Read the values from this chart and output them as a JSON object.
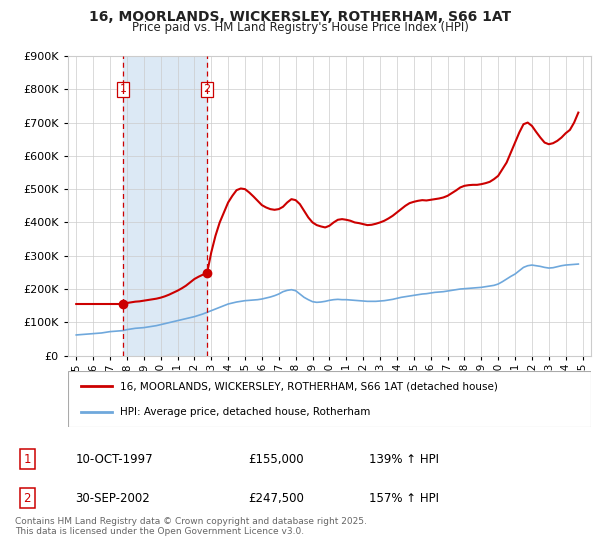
{
  "title": "16, MOORLANDS, WICKERSLEY, ROTHERHAM, S66 1AT",
  "subtitle": "Price paid vs. HM Land Registry's House Price Index (HPI)",
  "legend_line1": "16, MOORLANDS, WICKERSLEY, ROTHERHAM, S66 1AT (detached house)",
  "legend_line2": "HPI: Average price, detached house, Rotherham",
  "footnote1": "Contains HM Land Registry data © Crown copyright and database right 2025.",
  "footnote2": "This data is licensed under the Open Government Licence v3.0.",
  "transaction1_label": "1",
  "transaction1_date": "10-OCT-1997",
  "transaction1_price": "£155,000",
  "transaction1_hpi": "139% ↑ HPI",
  "transaction2_label": "2",
  "transaction2_date": "30-SEP-2002",
  "transaction2_price": "£247,500",
  "transaction2_hpi": "157% ↑ HPI",
  "sale1_year": 1997.78,
  "sale1_price": 155000,
  "sale2_year": 2002.75,
  "sale2_price": 247500,
  "hpi_color": "#6fa8dc",
  "price_color": "#cc0000",
  "highlight_color": "#dce9f5",
  "vline_color": "#cc0000",
  "grid_color": "#cccccc",
  "background_color": "#ffffff",
  "ylim": [
    0,
    900000
  ],
  "xlim_start": 1994.5,
  "xlim_end": 2025.5,
  "yticks": [
    0,
    100000,
    200000,
    300000,
    400000,
    500000,
    600000,
    700000,
    800000,
    900000
  ],
  "hpi_years": [
    1995,
    1995.25,
    1995.5,
    1995.75,
    1996,
    1996.25,
    1996.5,
    1996.75,
    1997,
    1997.25,
    1997.5,
    1997.75,
    1998,
    1998.25,
    1998.5,
    1998.75,
    1999,
    1999.25,
    1999.5,
    1999.75,
    2000,
    2000.25,
    2000.5,
    2000.75,
    2001,
    2001.25,
    2001.5,
    2001.75,
    2002,
    2002.25,
    2002.5,
    2002.75,
    2003,
    2003.25,
    2003.5,
    2003.75,
    2004,
    2004.25,
    2004.5,
    2004.75,
    2005,
    2005.25,
    2005.5,
    2005.75,
    2006,
    2006.25,
    2006.5,
    2006.75,
    2007,
    2007.25,
    2007.5,
    2007.75,
    2008,
    2008.25,
    2008.5,
    2008.75,
    2009,
    2009.25,
    2009.5,
    2009.75,
    2010,
    2010.25,
    2010.5,
    2010.75,
    2011,
    2011.25,
    2011.5,
    2011.75,
    2012,
    2012.25,
    2012.5,
    2012.75,
    2013,
    2013.25,
    2013.5,
    2013.75,
    2014,
    2014.25,
    2014.5,
    2014.75,
    2015,
    2015.25,
    2015.5,
    2015.75,
    2016,
    2016.25,
    2016.5,
    2016.75,
    2017,
    2017.25,
    2017.5,
    2017.75,
    2018,
    2018.25,
    2018.5,
    2018.75,
    2019,
    2019.25,
    2019.5,
    2019.75,
    2020,
    2020.25,
    2020.5,
    2020.75,
    2021,
    2021.25,
    2021.5,
    2021.75,
    2022,
    2022.25,
    2022.5,
    2022.75,
    2023,
    2023.25,
    2023.5,
    2023.75,
    2024,
    2024.25,
    2024.5,
    2024.75
  ],
  "hpi_values": [
    62000,
    63000,
    64000,
    65000,
    66000,
    67000,
    68000,
    70000,
    72000,
    73000,
    74000,
    75000,
    78000,
    80000,
    82000,
    83000,
    84000,
    86000,
    88000,
    90000,
    93000,
    96000,
    99000,
    102000,
    105000,
    108000,
    111000,
    114000,
    117000,
    121000,
    125000,
    130000,
    135000,
    140000,
    145000,
    150000,
    155000,
    158000,
    161000,
    163000,
    165000,
    166000,
    167000,
    168000,
    170000,
    173000,
    176000,
    180000,
    185000,
    192000,
    196000,
    198000,
    195000,
    185000,
    175000,
    168000,
    162000,
    160000,
    161000,
    163000,
    166000,
    168000,
    169000,
    168000,
    168000,
    167000,
    166000,
    165000,
    164000,
    163000,
    163000,
    163000,
    164000,
    165000,
    167000,
    169000,
    172000,
    175000,
    177000,
    179000,
    181000,
    183000,
    185000,
    186000,
    188000,
    190000,
    191000,
    192000,
    194000,
    196000,
    198000,
    200000,
    201000,
    202000,
    203000,
    204000,
    205000,
    207000,
    209000,
    211000,
    215000,
    222000,
    230000,
    238000,
    245000,
    255000,
    265000,
    270000,
    272000,
    270000,
    268000,
    265000,
    263000,
    264000,
    267000,
    270000,
    272000,
    273000,
    274000,
    275000
  ],
  "price_years": [
    1995,
    1995.25,
    1995.5,
    1995.75,
    1996,
    1996.25,
    1996.5,
    1996.75,
    1997,
    1997.25,
    1997.5,
    1997.75,
    1998,
    1998.25,
    1998.5,
    1998.75,
    1999,
    1999.25,
    1999.5,
    1999.75,
    2000,
    2000.25,
    2000.5,
    2000.75,
    2001,
    2001.25,
    2001.5,
    2001.75,
    2002,
    2002.25,
    2002.5,
    2002.75,
    2003,
    2003.25,
    2003.5,
    2003.75,
    2004,
    2004.25,
    2004.5,
    2004.75,
    2005,
    2005.25,
    2005.5,
    2005.75,
    2006,
    2006.25,
    2006.5,
    2006.75,
    2007,
    2007.25,
    2007.5,
    2007.75,
    2008,
    2008.25,
    2008.5,
    2008.75,
    2009,
    2009.25,
    2009.5,
    2009.75,
    2010,
    2010.25,
    2010.5,
    2010.75,
    2011,
    2011.25,
    2011.5,
    2011.75,
    2012,
    2012.25,
    2012.5,
    2012.75,
    2013,
    2013.25,
    2013.5,
    2013.75,
    2014,
    2014.25,
    2014.5,
    2014.75,
    2015,
    2015.25,
    2015.5,
    2015.75,
    2016,
    2016.25,
    2016.5,
    2016.75,
    2017,
    2017.25,
    2017.5,
    2017.75,
    2018,
    2018.25,
    2018.5,
    2018.75,
    2019,
    2019.25,
    2019.5,
    2019.75,
    2020,
    2020.25,
    2020.5,
    2020.75,
    2021,
    2021.25,
    2021.5,
    2021.75,
    2022,
    2022.25,
    2022.5,
    2022.75,
    2023,
    2023.25,
    2023.5,
    2023.75,
    2024,
    2024.25,
    2024.5,
    2024.75
  ],
  "price_values": [
    155000,
    155000,
    155000,
    155000,
    155000,
    155000,
    155000,
    155000,
    155000,
    155000,
    155000,
    155000,
    158000,
    160000,
    162000,
    163000,
    165000,
    167000,
    169000,
    171000,
    174000,
    178000,
    183000,
    189000,
    195000,
    202000,
    210000,
    220000,
    230000,
    237000,
    243000,
    247500,
    310000,
    360000,
    400000,
    430000,
    460000,
    480000,
    497000,
    502000,
    500000,
    490000,
    478000,
    465000,
    452000,
    445000,
    440000,
    438000,
    440000,
    447000,
    460000,
    470000,
    467000,
    455000,
    435000,
    415000,
    400000,
    392000,
    388000,
    385000,
    390000,
    400000,
    408000,
    410000,
    408000,
    405000,
    400000,
    398000,
    395000,
    392000,
    393000,
    396000,
    400000,
    405000,
    412000,
    420000,
    430000,
    440000,
    450000,
    458000,
    462000,
    465000,
    467000,
    466000,
    468000,
    470000,
    472000,
    475000,
    480000,
    488000,
    496000,
    505000,
    510000,
    512000,
    513000,
    513000,
    515000,
    518000,
    522000,
    530000,
    540000,
    560000,
    580000,
    610000,
    640000,
    670000,
    695000,
    700000,
    690000,
    672000,
    655000,
    640000,
    635000,
    638000,
    645000,
    655000,
    668000,
    678000,
    700000,
    730000
  ]
}
